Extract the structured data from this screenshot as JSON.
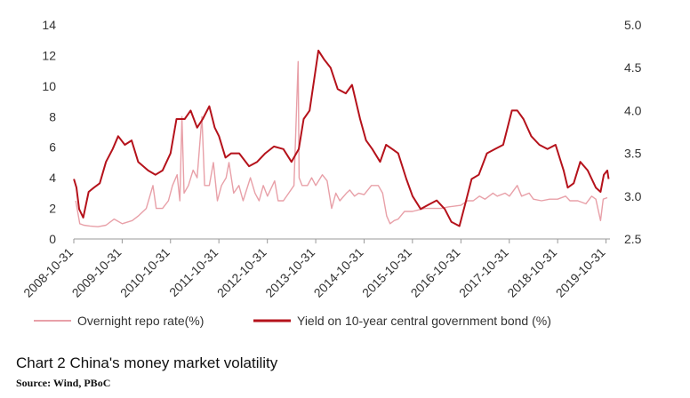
{
  "chart_data": {
    "type": "line",
    "title": "Chart 2  China's money market volatility",
    "source": "Source: Wind, PBoC",
    "x_ticks": [
      "2008-10-31",
      "2009-10-31",
      "2010-10-31",
      "2011-10-31",
      "2012-10-31",
      "2013-10-31",
      "2014-10-31",
      "2015-10-31",
      "2016-10-31",
      "2017-10-31",
      "2018-10-31",
      "2019-10-31"
    ],
    "x_range": [
      "2008-10-31",
      "2019-11-30"
    ],
    "y_left": {
      "ticks": [
        "0",
        "2",
        "4",
        "6",
        "8",
        "10",
        "12",
        "14"
      ],
      "lim": [
        0,
        14
      ]
    },
    "y_right": {
      "ticks": [
        "2.5",
        "3.0",
        "3.5",
        "4.0",
        "4.5",
        "5.0"
      ],
      "lim": [
        2.5,
        5.0
      ]
    },
    "grid": false,
    "legend_position": "bottom",
    "series": [
      {
        "name": "Overnight repo rate(%)",
        "axis": "left",
        "color": "#e8a0a8",
        "points": [
          [
            "2008-11-15",
            2.5
          ],
          [
            "2008-12-15",
            1.0
          ],
          [
            "2009-01-15",
            0.9
          ],
          [
            "2009-03-01",
            0.85
          ],
          [
            "2009-05-01",
            0.8
          ],
          [
            "2009-07-01",
            0.9
          ],
          [
            "2009-09-01",
            1.3
          ],
          [
            "2009-11-01",
            1.0
          ],
          [
            "2010-01-15",
            1.2
          ],
          [
            "2010-03-01",
            1.5
          ],
          [
            "2010-05-01",
            2.0
          ],
          [
            "2010-06-20",
            3.5
          ],
          [
            "2010-07-15",
            2.0
          ],
          [
            "2010-09-01",
            2.0
          ],
          [
            "2010-10-15",
            2.5
          ],
          [
            "2010-11-15",
            3.5
          ],
          [
            "2010-12-20",
            4.2
          ],
          [
            "2011-01-10",
            2.5
          ],
          [
            "2011-01-25",
            8.0
          ],
          [
            "2011-02-10",
            3.0
          ],
          [
            "2011-03-15",
            3.5
          ],
          [
            "2011-04-20",
            4.5
          ],
          [
            "2011-05-20",
            4.0
          ],
          [
            "2011-06-25",
            8.0
          ],
          [
            "2011-07-15",
            3.5
          ],
          [
            "2011-08-20",
            3.5
          ],
          [
            "2011-09-20",
            5.0
          ],
          [
            "2011-10-20",
            2.5
          ],
          [
            "2011-11-20",
            3.5
          ],
          [
            "2011-12-25",
            4.0
          ],
          [
            "2012-01-15",
            5.0
          ],
          [
            "2012-02-20",
            3.0
          ],
          [
            "2012-03-30",
            3.5
          ],
          [
            "2012-05-01",
            2.5
          ],
          [
            "2012-06-25",
            4.0
          ],
          [
            "2012-07-30",
            3.0
          ],
          [
            "2012-08-30",
            2.5
          ],
          [
            "2012-09-30",
            3.5
          ],
          [
            "2012-11-01",
            2.8
          ],
          [
            "2012-12-25",
            3.8
          ],
          [
            "2013-01-20",
            2.5
          ],
          [
            "2013-03-01",
            2.5
          ],
          [
            "2013-04-10",
            3.0
          ],
          [
            "2013-05-20",
            3.5
          ],
          [
            "2013-06-20",
            11.6
          ],
          [
            "2013-06-28",
            4.0
          ],
          [
            "2013-07-20",
            3.5
          ],
          [
            "2013-08-30",
            3.5
          ],
          [
            "2013-09-30",
            4.0
          ],
          [
            "2013-10-31",
            3.5
          ],
          [
            "2013-12-20",
            4.2
          ],
          [
            "2014-01-25",
            3.8
          ],
          [
            "2014-02-28",
            2.0
          ],
          [
            "2014-04-01",
            3.0
          ],
          [
            "2014-05-01",
            2.5
          ],
          [
            "2014-06-20",
            3.0
          ],
          [
            "2014-07-15",
            3.2
          ],
          [
            "2014-08-20",
            2.8
          ],
          [
            "2014-09-20",
            3.0
          ],
          [
            "2014-10-31",
            2.9
          ],
          [
            "2014-12-25",
            3.5
          ],
          [
            "2015-02-15",
            3.5
          ],
          [
            "2015-03-20",
            3.0
          ],
          [
            "2015-04-20",
            1.5
          ],
          [
            "2015-05-15",
            1.0
          ],
          [
            "2015-06-15",
            1.2
          ],
          [
            "2015-07-15",
            1.3
          ],
          [
            "2015-09-01",
            1.8
          ],
          [
            "2015-10-31",
            1.8
          ],
          [
            "2016-02-01",
            2.0
          ],
          [
            "2016-04-01",
            2.0
          ],
          [
            "2016-06-01",
            2.0
          ],
          [
            "2016-08-01",
            2.1
          ],
          [
            "2016-10-31",
            2.2
          ],
          [
            "2016-12-20",
            2.5
          ],
          [
            "2017-02-01",
            2.5
          ],
          [
            "2017-03-20",
            2.8
          ],
          [
            "2017-05-01",
            2.6
          ],
          [
            "2017-06-30",
            3.0
          ],
          [
            "2017-08-01",
            2.8
          ],
          [
            "2017-09-30",
            3.0
          ],
          [
            "2017-11-01",
            2.8
          ],
          [
            "2017-12-30",
            3.5
          ],
          [
            "2018-02-01",
            2.8
          ],
          [
            "2018-03-30",
            3.0
          ],
          [
            "2018-05-01",
            2.6
          ],
          [
            "2018-07-01",
            2.5
          ],
          [
            "2018-09-01",
            2.6
          ],
          [
            "2018-10-31",
            2.6
          ],
          [
            "2018-12-30",
            2.8
          ],
          [
            "2019-02-01",
            2.5
          ],
          [
            "2019-04-01",
            2.5
          ],
          [
            "2019-06-01",
            2.3
          ],
          [
            "2019-07-15",
            2.8
          ],
          [
            "2019-08-15",
            2.6
          ],
          [
            "2019-09-20",
            1.2
          ],
          [
            "2019-10-10",
            2.6
          ],
          [
            "2019-11-10",
            2.7
          ]
        ]
      },
      {
        "name": "Yield on 10-year central government bond (%)",
        "axis": "right",
        "color": "#b5121b",
        "points": [
          [
            "2008-11-01",
            3.2
          ],
          [
            "2008-11-20",
            3.1
          ],
          [
            "2008-12-10",
            2.85
          ],
          [
            "2009-01-10",
            2.75
          ],
          [
            "2009-02-20",
            3.05
          ],
          [
            "2009-04-01",
            3.1
          ],
          [
            "2009-05-15",
            3.15
          ],
          [
            "2009-07-01",
            3.4
          ],
          [
            "2009-08-20",
            3.55
          ],
          [
            "2009-10-01",
            3.7
          ],
          [
            "2009-11-20",
            3.6
          ],
          [
            "2010-01-10",
            3.65
          ],
          [
            "2010-03-01",
            3.4
          ],
          [
            "2010-05-15",
            3.3
          ],
          [
            "2010-07-10",
            3.25
          ],
          [
            "2010-09-01",
            3.3
          ],
          [
            "2010-10-31",
            3.5
          ],
          [
            "2010-12-15",
            3.9
          ],
          [
            "2011-02-15",
            3.9
          ],
          [
            "2011-04-01",
            4.0
          ],
          [
            "2011-05-20",
            3.8
          ],
          [
            "2011-07-01",
            3.9
          ],
          [
            "2011-08-20",
            4.05
          ],
          [
            "2011-09-30",
            3.8
          ],
          [
            "2011-11-01",
            3.7
          ],
          [
            "2011-12-20",
            3.45
          ],
          [
            "2012-02-01",
            3.5
          ],
          [
            "2012-04-01",
            3.5
          ],
          [
            "2012-06-15",
            3.35
          ],
          [
            "2012-08-15",
            3.4
          ],
          [
            "2012-10-15",
            3.5
          ],
          [
            "2012-12-20",
            3.58
          ],
          [
            "2013-03-01",
            3.55
          ],
          [
            "2013-05-01",
            3.4
          ],
          [
            "2013-06-25",
            3.55
          ],
          [
            "2013-08-01",
            3.9
          ],
          [
            "2013-09-15",
            4.0
          ],
          [
            "2013-11-20",
            4.7
          ],
          [
            "2014-01-01",
            4.6
          ],
          [
            "2014-02-20",
            4.5
          ],
          [
            "2014-04-15",
            4.25
          ],
          [
            "2014-06-15",
            4.2
          ],
          [
            "2014-08-01",
            4.3
          ],
          [
            "2014-10-01",
            3.9
          ],
          [
            "2014-11-15",
            3.65
          ],
          [
            "2015-01-01",
            3.55
          ],
          [
            "2015-03-01",
            3.4
          ],
          [
            "2015-04-15",
            3.6
          ],
          [
            "2015-06-01",
            3.55
          ],
          [
            "2015-07-15",
            3.5
          ],
          [
            "2015-09-15",
            3.2
          ],
          [
            "2015-11-01",
            3.0
          ],
          [
            "2016-01-01",
            2.85
          ],
          [
            "2016-03-01",
            2.9
          ],
          [
            "2016-05-01",
            2.95
          ],
          [
            "2016-07-01",
            2.85
          ],
          [
            "2016-08-20",
            2.7
          ],
          [
            "2016-10-20",
            2.65
          ],
          [
            "2016-12-01",
            2.9
          ],
          [
            "2017-01-20",
            3.2
          ],
          [
            "2017-03-15",
            3.25
          ],
          [
            "2017-05-15",
            3.5
          ],
          [
            "2017-07-15",
            3.55
          ],
          [
            "2017-09-15",
            3.6
          ],
          [
            "2017-11-20",
            4.0
          ],
          [
            "2017-12-31",
            4.0
          ],
          [
            "2018-02-15",
            3.9
          ],
          [
            "2018-04-15",
            3.7
          ],
          [
            "2018-06-15",
            3.6
          ],
          [
            "2018-08-15",
            3.55
          ],
          [
            "2018-10-15",
            3.6
          ],
          [
            "2018-12-15",
            3.3
          ],
          [
            "2019-01-15",
            3.1
          ],
          [
            "2019-03-01",
            3.15
          ],
          [
            "2019-04-20",
            3.4
          ],
          [
            "2019-06-15",
            3.3
          ],
          [
            "2019-08-15",
            3.1
          ],
          [
            "2019-09-20",
            3.05
          ],
          [
            "2019-10-15",
            3.25
          ],
          [
            "2019-11-10",
            3.3
          ],
          [
            "2019-11-20",
            3.2
          ]
        ]
      }
    ]
  },
  "colors": {
    "background": "#ffffff",
    "axis": "#999999",
    "tick_label": "#333333",
    "repo_line": "#e8a0a8",
    "bond_line": "#b5121b"
  }
}
